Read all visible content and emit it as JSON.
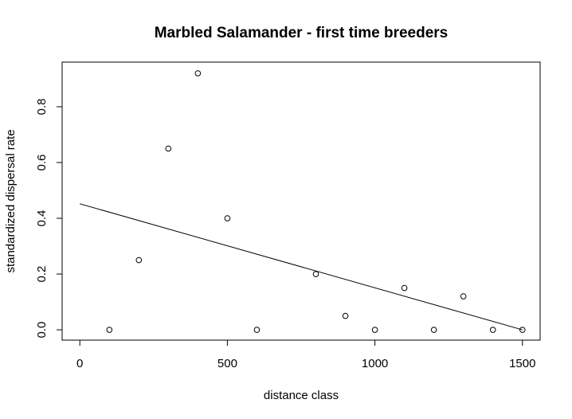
{
  "chart_data": {
    "type": "scatter",
    "title": "Marbled Salamander - first time breeders",
    "xlabel": "distance class",
    "ylabel": "standardized dispersal rate",
    "xlim": [
      -60,
      1560
    ],
    "ylim": [
      -0.037,
      0.96
    ],
    "x_ticks": [
      0,
      500,
      1000,
      1500
    ],
    "x_tick_labels": [
      "0",
      "500",
      "1000",
      "1500"
    ],
    "y_ticks": [
      0.0,
      0.2,
      0.4,
      0.6,
      0.8
    ],
    "y_tick_labels": [
      "0.0",
      "0.2",
      "0.4",
      "0.6",
      "0.8"
    ],
    "grid": false,
    "points": [
      {
        "x": 100,
        "y": 0.0
      },
      {
        "x": 200,
        "y": 0.25
      },
      {
        "x": 300,
        "y": 0.65
      },
      {
        "x": 400,
        "y": 0.92
      },
      {
        "x": 500,
        "y": 0.4
      },
      {
        "x": 600,
        "y": 0.0
      },
      {
        "x": 800,
        "y": 0.2
      },
      {
        "x": 900,
        "y": 0.05
      },
      {
        "x": 1000,
        "y": 0.0
      },
      {
        "x": 1100,
        "y": 0.15
      },
      {
        "x": 1200,
        "y": 0.0
      },
      {
        "x": 1300,
        "y": 0.12
      },
      {
        "x": 1400,
        "y": 0.0
      },
      {
        "x": 1500,
        "y": 0.0
      }
    ],
    "fit_line": {
      "x": [
        0,
        1500
      ],
      "y": [
        0.452,
        0.0
      ]
    }
  }
}
